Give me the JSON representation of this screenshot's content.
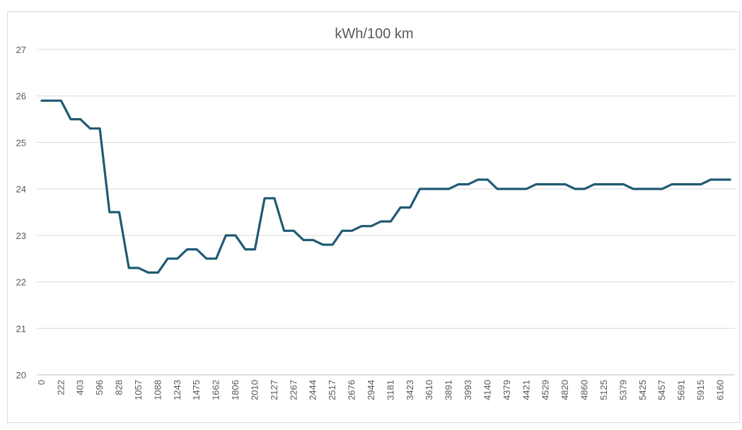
{
  "chart_data": {
    "type": "line",
    "title": "kWh/100 km",
    "xlabel": "",
    "ylabel": "",
    "ylim": [
      20,
      27
    ],
    "yticks": [
      20,
      21,
      22,
      23,
      24,
      25,
      26,
      27
    ],
    "grid": true,
    "legend": "none",
    "x": [
      "0",
      "",
      "222",
      "",
      "403",
      "",
      "596",
      "",
      "828",
      "",
      "1057",
      "",
      "1088",
      "",
      "1243",
      "",
      "1475",
      "",
      "1662",
      "",
      "1806",
      "",
      "2010",
      "",
      "2127",
      "",
      "2267",
      "",
      "2444",
      "",
      "2517",
      "",
      "2676",
      "",
      "2944",
      "",
      "3181",
      "",
      "3423",
      "",
      "3610",
      "",
      "3891",
      "",
      "3993",
      "",
      "4140",
      "",
      "4379",
      "",
      "4421",
      "",
      "4529",
      "",
      "4820",
      "",
      "4860",
      "",
      "5125",
      "",
      "5379",
      "",
      "5425",
      "",
      "5457",
      "",
      "5691",
      "",
      "5915",
      "",
      "6160",
      ""
    ],
    "series": [
      {
        "color": "#1f5a73",
        "values": [
          25.9,
          25.9,
          25.9,
          25.5,
          25.5,
          25.3,
          25.3,
          23.5,
          23.5,
          22.3,
          22.3,
          22.2,
          22.2,
          22.5,
          22.5,
          22.7,
          22.7,
          22.5,
          22.5,
          23.0,
          23.0,
          22.7,
          22.7,
          23.8,
          23.8,
          23.1,
          23.1,
          22.9,
          22.9,
          22.8,
          22.8,
          23.1,
          23.1,
          23.2,
          23.2,
          23.3,
          23.3,
          23.6,
          23.6,
          24.0,
          24.0,
          24.0,
          24.0,
          24.1,
          24.1,
          24.2,
          24.2,
          24.0,
          24.0,
          24.0,
          24.0,
          24.1,
          24.1,
          24.1,
          24.1,
          24.0,
          24.0,
          24.1,
          24.1,
          24.1,
          24.1,
          24.0,
          24.0,
          24.0,
          24.0,
          24.1,
          24.1,
          24.1,
          24.1,
          24.2,
          24.2,
          24.2
        ]
      }
    ]
  }
}
